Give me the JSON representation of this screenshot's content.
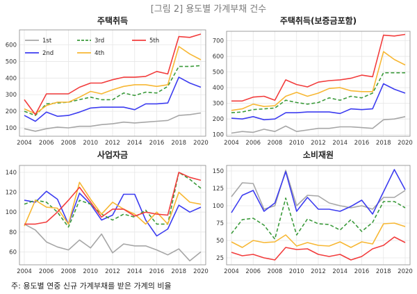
{
  "figure_title": "[그림 2] 용도별 가계부채 건수",
  "note": "주: 용도별 연중 신규 가계부채를 받은 가계의 비율",
  "colors": {
    "1st": "#a6a6a6",
    "2nd": "#3c3cf0",
    "3rd": "#3a9a3a",
    "4th": "#f7b733",
    "5th": "#f23c3c",
    "grid": "#e6e6e6",
    "axis": "#888888"
  },
  "chart_data": [
    {
      "type": "line",
      "title": "주택취득",
      "x": [
        2004,
        2005,
        2006,
        2007,
        2008,
        2009,
        2010,
        2011,
        2012,
        2013,
        2014,
        2015,
        2016,
        2017,
        2018,
        2019,
        2020
      ],
      "xticks": [
        2004,
        2006,
        2008,
        2010,
        2012,
        2014,
        2016,
        2018,
        2020
      ],
      "ylim": [
        50,
        690
      ],
      "yticks": [
        100,
        200,
        300,
        400,
        500,
        600
      ],
      "legend": {
        "position": "top-left",
        "entries": [
          "1st",
          "2nd",
          "3rd",
          "4th",
          "5th"
        ]
      },
      "series": [
        {
          "name": "1st",
          "values": [
            95,
            80,
            95,
            105,
            100,
            110,
            110,
            120,
            125,
            135,
            130,
            135,
            140,
            145,
            175,
            180,
            190
          ]
        },
        {
          "name": "2nd",
          "values": [
            175,
            140,
            195,
            170,
            175,
            195,
            220,
            225,
            225,
            225,
            210,
            245,
            245,
            250,
            405,
            370,
            345
          ]
        },
        {
          "name": "3rd",
          "values": [
            200,
            175,
            245,
            250,
            255,
            270,
            285,
            270,
            270,
            310,
            295,
            315,
            310,
            350,
            470,
            470,
            475
          ]
        },
        {
          "name": "4th",
          "values": [
            215,
            185,
            235,
            255,
            255,
            285,
            320,
            305,
            330,
            350,
            360,
            360,
            350,
            360,
            590,
            545,
            510
          ]
        },
        {
          "name": "5th",
          "values": [
            270,
            180,
            305,
            305,
            305,
            345,
            370,
            370,
            390,
            405,
            405,
            410,
            440,
            425,
            650,
            645,
            665
          ]
        }
      ]
    },
    {
      "type": "line",
      "title": "주택취득(보증금포함)",
      "x": [
        2004,
        2005,
        2006,
        2007,
        2008,
        2009,
        2010,
        2011,
        2012,
        2013,
        2014,
        2015,
        2016,
        2017,
        2018,
        2019,
        2020
      ],
      "xticks": [
        2004,
        2006,
        2008,
        2010,
        2012,
        2014,
        2016,
        2018,
        2020
      ],
      "ylim": [
        90,
        760
      ],
      "yticks": [
        100,
        200,
        300,
        400,
        500,
        600,
        700
      ],
      "series": [
        {
          "name": "1st",
          "values": [
            110,
            120,
            115,
            135,
            120,
            155,
            120,
            130,
            140,
            140,
            150,
            150,
            145,
            140,
            195,
            200,
            215
          ]
        },
        {
          "name": "2nd",
          "values": [
            205,
            200,
            215,
            195,
            200,
            240,
            240,
            245,
            245,
            245,
            235,
            265,
            260,
            265,
            425,
            390,
            365
          ]
        },
        {
          "name": "3rd",
          "values": [
            240,
            245,
            260,
            265,
            270,
            320,
            305,
            295,
            305,
            335,
            320,
            345,
            335,
            365,
            495,
            495,
            495
          ]
        },
        {
          "name": "4th",
          "values": [
            255,
            265,
            295,
            280,
            285,
            345,
            370,
            345,
            365,
            395,
            400,
            380,
            375,
            375,
            630,
            580,
            545
          ]
        },
        {
          "name": "5th",
          "values": [
            315,
            315,
            340,
            345,
            320,
            450,
            420,
            405,
            435,
            445,
            450,
            460,
            480,
            470,
            735,
            730,
            740
          ]
        }
      ]
    },
    {
      "type": "line",
      "title": "사업자금",
      "x": [
        2004,
        2005,
        2006,
        2007,
        2008,
        2009,
        2010,
        2011,
        2012,
        2013,
        2014,
        2015,
        2016,
        2017,
        2018,
        2019,
        2020
      ],
      "xticks": [
        2004,
        2006,
        2008,
        2010,
        2012,
        2014,
        2016,
        2018,
        2020
      ],
      "ylim": [
        47,
        147
      ],
      "yticks": [
        60,
        80,
        100,
        120,
        140
      ],
      "series": [
        {
          "name": "1st",
          "values": [
            88,
            82,
            70,
            65,
            62,
            72,
            64,
            78,
            59,
            68,
            66,
            66,
            62,
            57,
            63,
            51,
            60
          ]
        },
        {
          "name": "2nd",
          "values": [
            112,
            110,
            121,
            113,
            88,
            119,
            108,
            92,
            97,
            118,
            118,
            92,
            76,
            83,
            107,
            100,
            105
          ]
        },
        {
          "name": "3rd",
          "values": [
            108,
            112,
            110,
            100,
            85,
            112,
            108,
            98,
            92,
            98,
            95,
            102,
            88,
            88,
            140,
            133,
            124
          ]
        },
        {
          "name": "4th",
          "values": [
            86,
            112,
            105,
            104,
            88,
            130,
            113,
            98,
            110,
            103,
            98,
            88,
            100,
            88,
            120,
            110,
            108
          ]
        },
        {
          "name": "5th",
          "values": [
            88,
            88,
            90,
            100,
            112,
            125,
            110,
            95,
            103,
            103,
            96,
            100,
            98,
            97,
            140,
            135,
            132
          ]
        }
      ]
    },
    {
      "type": "line",
      "title": "소비재원",
      "x": [
        2004,
        2005,
        2006,
        2007,
        2008,
        2009,
        2010,
        2011,
        2012,
        2013,
        2014,
        2015,
        2016,
        2017,
        2018,
        2019,
        2020
      ],
      "xticks": [
        2004,
        2006,
        2008,
        2010,
        2012,
        2014,
        2016,
        2018,
        2020
      ],
      "ylim": [
        15,
        158
      ],
      "yticks": [
        25,
        50,
        75,
        100,
        125,
        150
      ],
      "series": [
        {
          "name": "1st",
          "values": [
            113,
            133,
            132,
            95,
            100,
            151,
            100,
            115,
            114,
            104,
            100,
            97,
            100,
            95,
            112,
            112,
            122
          ]
        },
        {
          "name": "2nd",
          "values": [
            90,
            115,
            122,
            92,
            104,
            149,
            92,
            112,
            95,
            95,
            92,
            99,
            108,
            88,
            120,
            152,
            123
          ]
        },
        {
          "name": "3rd",
          "values": [
            60,
            80,
            82,
            72,
            52,
            111,
            58,
            81,
            74,
            73,
            65,
            80,
            63,
            76,
            106,
            106,
            97
          ]
        },
        {
          "name": "4th",
          "values": [
            48,
            40,
            50,
            47,
            48,
            58,
            42,
            47,
            43,
            42,
            48,
            40,
            48,
            45,
            74,
            75,
            70
          ]
        },
        {
          "name": "5th",
          "values": [
            33,
            28,
            30,
            25,
            22,
            40,
            37,
            38,
            30,
            27,
            30,
            22,
            27,
            38,
            43,
            55,
            47
          ]
        }
      ]
    }
  ]
}
